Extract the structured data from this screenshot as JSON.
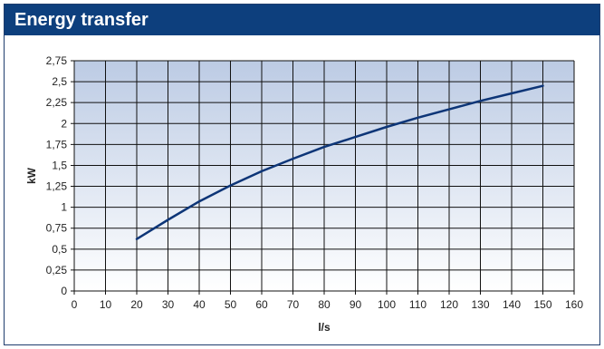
{
  "window": {
    "title": "Energy transfer"
  },
  "colors": {
    "header_bg": "#0d3f7d",
    "line": "#0d3577",
    "plot_bg_top": "#bccbe4",
    "plot_bg_bottom": "#ffffff",
    "grid": "#111111"
  },
  "chart_data": {
    "type": "line",
    "title": "Energy transfer",
    "xlabel": "l/s",
    "ylabel": "kW",
    "xlim": [
      0,
      160
    ],
    "ylim": [
      0,
      2.75
    ],
    "x_ticks": [
      "0",
      "10",
      "20",
      "30",
      "40",
      "50",
      "60",
      "70",
      "80",
      "90",
      "100",
      "110",
      "120",
      "130",
      "140",
      "150",
      "160"
    ],
    "y_ticks": [
      "0",
      "0,25",
      "0,5",
      "0,75",
      "1",
      "1,25",
      "1,5",
      "1,75",
      "2",
      "2,25",
      "2,5",
      "2,75"
    ],
    "grid": true,
    "series": [
      {
        "x": [
          20,
          30,
          40,
          50,
          60,
          70,
          80,
          90,
          100,
          110,
          120,
          130,
          140,
          150
        ],
        "y": [
          0.62,
          0.85,
          1.07,
          1.26,
          1.43,
          1.58,
          1.72,
          1.84,
          1.96,
          2.07,
          2.17,
          2.27,
          2.36,
          2.45
        ]
      }
    ]
  }
}
